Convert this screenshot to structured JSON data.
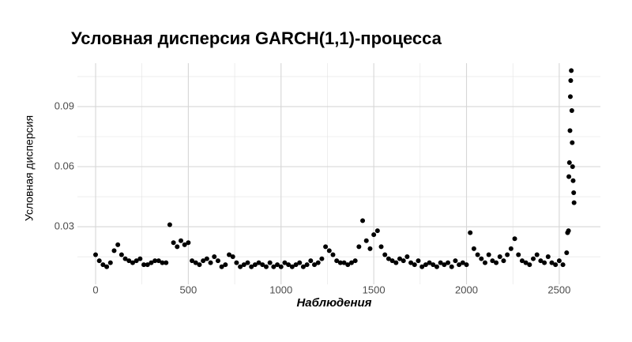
{
  "chart_data": {
    "type": "scatter",
    "title": "Условная дисперсия GARCH(1,1)-процесса",
    "x_label": "Наблюдения",
    "y_label": "Условная дисперсия",
    "color": "#000000",
    "grid": true,
    "xlim": [
      -98,
      2722
    ],
    "ylim": [
      0.0012,
      0.1117
    ],
    "xticks": [
      0,
      500,
      1000,
      1500,
      2000,
      2500
    ],
    "yticks": [
      0.03,
      0.06,
      0.09
    ],
    "xminor": [
      250,
      750,
      1250,
      1750,
      2250
    ],
    "yminor": [
      0.015,
      0.045,
      0.075,
      0.105
    ],
    "x": [
      0,
      20,
      40,
      60,
      80,
      100,
      120,
      140,
      160,
      180,
      200,
      220,
      240,
      260,
      280,
      300,
      320,
      340,
      360,
      380,
      400,
      420,
      440,
      460,
      480,
      500,
      520,
      540,
      560,
      580,
      600,
      620,
      640,
      660,
      680,
      700,
      720,
      740,
      760,
      780,
      800,
      820,
      840,
      860,
      880,
      900,
      920,
      940,
      960,
      980,
      1000,
      1020,
      1040,
      1060,
      1080,
      1100,
      1120,
      1140,
      1160,
      1180,
      1200,
      1220,
      1240,
      1260,
      1280,
      1300,
      1320,
      1340,
      1360,
      1380,
      1400,
      1420,
      1440,
      1460,
      1480,
      1500,
      1520,
      1540,
      1560,
      1580,
      1600,
      1620,
      1640,
      1660,
      1680,
      1700,
      1720,
      1740,
      1760,
      1780,
      1800,
      1820,
      1840,
      1860,
      1880,
      1900,
      1920,
      1940,
      1960,
      1980,
      2000,
      2020,
      2040,
      2060,
      2080,
      2100,
      2120,
      2140,
      2160,
      2180,
      2200,
      2220,
      2240,
      2260,
      2280,
      2300,
      2320,
      2340,
      2360,
      2380,
      2400,
      2420,
      2440,
      2460,
      2480,
      2500,
      2520,
      2540,
      2545,
      2550,
      2552,
      2555,
      2558,
      2560,
      2562,
      2565,
      2568,
      2570,
      2572,
      2575,
      2578,
      2580
    ],
    "values": [
      0.016,
      0.013,
      0.011,
      0.01,
      0.012,
      0.018,
      0.021,
      0.016,
      0.014,
      0.013,
      0.012,
      0.013,
      0.014,
      0.011,
      0.011,
      0.012,
      0.013,
      0.013,
      0.012,
      0.012,
      0.031,
      0.022,
      0.02,
      0.023,
      0.021,
      0.022,
      0.013,
      0.012,
      0.011,
      0.013,
      0.014,
      0.012,
      0.015,
      0.013,
      0.01,
      0.011,
      0.016,
      0.015,
      0.012,
      0.01,
      0.011,
      0.012,
      0.01,
      0.011,
      0.012,
      0.011,
      0.01,
      0.012,
      0.01,
      0.011,
      0.01,
      0.012,
      0.011,
      0.01,
      0.011,
      0.012,
      0.01,
      0.011,
      0.013,
      0.011,
      0.012,
      0.014,
      0.02,
      0.018,
      0.016,
      0.013,
      0.012,
      0.012,
      0.011,
      0.012,
      0.013,
      0.02,
      0.033,
      0.023,
      0.019,
      0.026,
      0.028,
      0.02,
      0.016,
      0.014,
      0.013,
      0.012,
      0.014,
      0.013,
      0.015,
      0.012,
      0.011,
      0.013,
      0.01,
      0.011,
      0.012,
      0.011,
      0.01,
      0.012,
      0.011,
      0.012,
      0.01,
      0.013,
      0.011,
      0.012,
      0.011,
      0.027,
      0.019,
      0.016,
      0.014,
      0.012,
      0.016,
      0.013,
      0.012,
      0.015,
      0.013,
      0.016,
      0.019,
      0.024,
      0.016,
      0.013,
      0.012,
      0.011,
      0.014,
      0.016,
      0.013,
      0.012,
      0.015,
      0.012,
      0.011,
      0.013,
      0.011,
      0.017,
      0.027,
      0.028,
      0.055,
      0.062,
      0.078,
      0.095,
      0.103,
      0.108,
      0.088,
      0.072,
      0.06,
      0.053,
      0.047,
      0.042
    ]
  }
}
